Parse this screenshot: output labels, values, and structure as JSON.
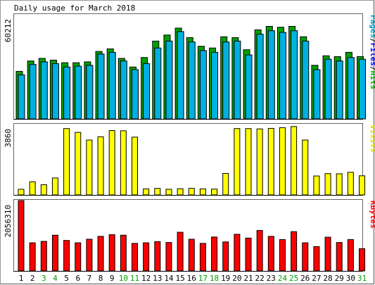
{
  "chart_data": {
    "type": "bar",
    "title": "Daily usage for March 2018",
    "days": [
      "1",
      "2",
      "3",
      "4",
      "5",
      "6",
      "7",
      "8",
      "9",
      "10",
      "11",
      "12",
      "13",
      "14",
      "15",
      "16",
      "17",
      "18",
      "19",
      "20",
      "21",
      "22",
      "23",
      "24",
      "25",
      "26",
      "27",
      "28",
      "29",
      "30",
      "31"
    ],
    "weekend_days": [
      "3",
      "4",
      "10",
      "11",
      "17",
      "18",
      "24",
      "25",
      "31"
    ],
    "panels": [
      {
        "id": "hits",
        "ymax_label": "60212",
        "ymax": 60212,
        "legend": [
          {
            "text": "Pages",
            "color": "#00A0C0"
          },
          {
            "text": "/",
            "color": "#000000"
          },
          {
            "text": "Files",
            "color": "#0000FF"
          },
          {
            "text": "/",
            "color": "#000000"
          },
          {
            "text": "Hits",
            "color": "#00AA00"
          }
        ],
        "series": [
          {
            "name": "Hits",
            "color": "#00A000",
            "values": [
              27500,
              33500,
              35000,
              34000,
              32500,
              32500,
              33000,
              39000,
              40500,
              35000,
              30000,
              35500,
              45000,
              48500,
              52500,
              47000,
              42000,
              41000,
              47500,
              47000,
              40000,
              51500,
              53500,
              53000,
              53500,
              47500,
              31000,
              36500,
              36000,
              38500,
              36000
            ]
          },
          {
            "name": "Files",
            "color": "#00B0E0",
            "values": [
              25500,
              31500,
              33000,
              32000,
              30000,
              30500,
              31000,
              37500,
              38500,
              33500,
              28500,
              32000,
              41000,
              45000,
              50500,
              44500,
              39500,
              38500,
              44500,
              45000,
              37000,
              49000,
              51000,
              50000,
              51000,
              45000,
              28500,
              34500,
              33500,
              35500,
              34500
            ]
          }
        ]
      },
      {
        "id": "visits",
        "ymax_label": "3860",
        "ymax": 3860,
        "legend": [
          {
            "text": "Visits",
            "color": "#E0E000"
          }
        ],
        "series": [
          {
            "name": "Visits",
            "color": "#FFFF00",
            "values": [
              310,
              720,
              560,
              930,
              3640,
              3430,
              3010,
              3190,
              3530,
              3520,
              3170,
              330,
              360,
              310,
              340,
              360,
              330,
              320,
              1180,
              3640,
              3640,
              3620,
              3650,
              3690,
              3750,
              3010,
              1040,
              1170,
              1160,
              1240,
              1050
            ]
          }
        ]
      },
      {
        "id": "kbytes",
        "ymax_label": "2056310",
        "ymax": 2056310,
        "legend": [
          {
            "text": "KBytes",
            "color": "#FF0000"
          }
        ],
        "series": [
          {
            "name": "KBytes",
            "color": "#FF0000",
            "values": [
              2056310,
              822000,
              864000,
              1044000,
              891000,
              822000,
              926000,
              1010000,
              1060000,
              1044000,
              805000,
              822000,
              857000,
              831000,
              1130000,
              926000,
              805000,
              991000,
              848000,
              1071000,
              960000,
              1183000,
              1010000,
              917000,
              1148000,
              822000,
              711000,
              986000,
              831000,
              917000,
              651000
            ]
          }
        ]
      }
    ]
  }
}
